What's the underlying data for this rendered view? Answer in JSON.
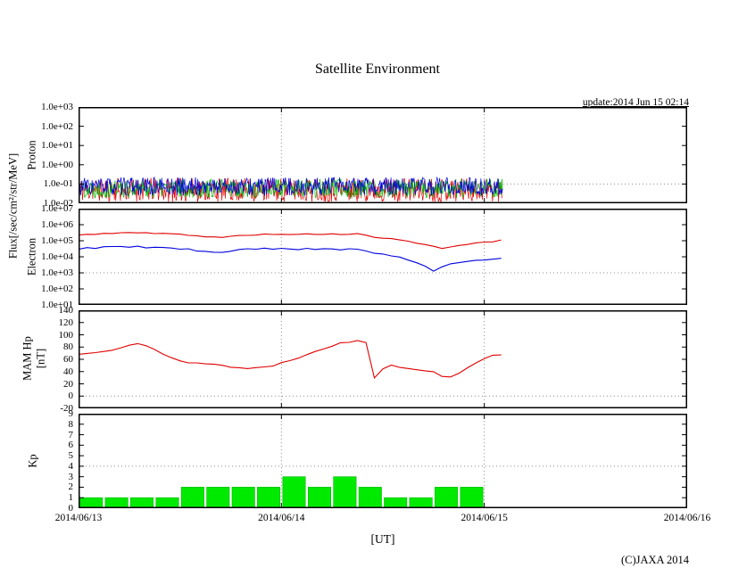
{
  "title": "Satellite Environment",
  "update_text": "update:2014 Jun 15 02:14",
  "xlabel": "[UT]",
  "copyright": "(C)JAXA 2014",
  "axis_labels": {
    "flux": "Flux[/sec/cm²/str/MeV]",
    "proton": "Proton",
    "electron": "Electron",
    "mam_hp": "MAM Hp",
    "nt": "[nT]",
    "kp": "Kp"
  },
  "x_axis": {
    "tick_labels": [
      "2014/06/13",
      "2014/06/14",
      "2014/06/15",
      "2014/06/16"
    ],
    "span_hours": 72,
    "grid_days": [
      1,
      2
    ]
  },
  "chart_data": [
    {
      "id": "proton",
      "name": "Proton flux",
      "type": "line",
      "yscale": "log",
      "ylim": [
        0.01,
        1000
      ],
      "yticks": [
        {
          "v": 1000,
          "label": "1.0e+03"
        },
        {
          "v": 100,
          "label": "1.0e+02"
        },
        {
          "v": 10,
          "label": "1.0e+01"
        },
        {
          "v": 1,
          "label": "1.0e+00"
        },
        {
          "v": 0.1,
          "label": "1.0e-01"
        },
        {
          "v": 0.01,
          "label": "1.0e-02"
        }
      ],
      "grid_y": [
        0.1
      ],
      "series": [
        {
          "name": "proton-ch-red",
          "color": "#e00000",
          "noise": {
            "seed": 11,
            "base": 0.05,
            "logspread": 1.25,
            "t_end": 50.2,
            "dt": 0.08
          }
        },
        {
          "name": "proton-ch-green",
          "color": "#00b400",
          "noise": {
            "seed": 22,
            "base": 0.06,
            "logspread": 1.0,
            "t_end": 50.2,
            "dt": 0.08
          }
        },
        {
          "name": "proton-ch-blue",
          "color": "#0000dd",
          "noise": {
            "seed": 33,
            "base": 0.075,
            "logspread": 0.95,
            "t_end": 50.2,
            "dt": 0.08
          }
        }
      ]
    },
    {
      "id": "electron",
      "name": "Electron flux",
      "type": "line",
      "yscale": "log",
      "ylim": [
        10,
        10000000
      ],
      "yticks": [
        {
          "v": 10000000,
          "label": "1.0e+07"
        },
        {
          "v": 1000000,
          "label": "1.0e+06"
        },
        {
          "v": 100000,
          "label": "1.0e+05"
        },
        {
          "v": 10000,
          "label": "1.0e+04"
        },
        {
          "v": 1000,
          "label": "1.0e+03"
        },
        {
          "v": 100,
          "label": "1.0e+02"
        },
        {
          "v": 10,
          "label": "1.0e+01"
        }
      ],
      "grid_y": [
        1000
      ],
      "x_step_hours": 1,
      "series": [
        {
          "name": "electron-high",
          "color": "#e00000",
          "seed": 5,
          "jitter_log": 0.035,
          "values": [
            220000,
            240000,
            260000,
            285000,
            300000,
            310000,
            315000,
            310000,
            300000,
            290000,
            278000,
            262000,
            250000,
            232000,
            205000,
            178000,
            162000,
            166000,
            182000,
            205000,
            225000,
            242000,
            252000,
            257000,
            260000,
            258000,
            254000,
            250000,
            258000,
            264000,
            258000,
            250000,
            254000,
            260000,
            228000,
            165000,
            150000,
            128000,
            108000,
            88000,
            70000,
            55000,
            44000,
            35000,
            40000,
            50000,
            60000,
            70000,
            81000,
            92000,
            105000
          ]
        },
        {
          "name": "electron-low",
          "color": "#0000dd",
          "seed": 9,
          "jitter_log": 0.06,
          "values": [
            32000,
            34000,
            36500,
            39000,
            41000,
            42000,
            42000,
            41000,
            39500,
            38000,
            36000,
            34000,
            31500,
            28000,
            24000,
            20500,
            18500,
            19500,
            22000,
            25500,
            28500,
            30000,
            31000,
            31800,
            32000,
            31800,
            31000,
            30200,
            31000,
            31800,
            31000,
            30000,
            29000,
            28000,
            25000,
            18500,
            15000,
            12000,
            9200,
            6600,
            4200,
            2300,
            1250,
            2600,
            3600,
            4500,
            5100,
            5600,
            6100,
            6900,
            8000
          ]
        }
      ]
    },
    {
      "id": "hp",
      "name": "MAM Hp",
      "type": "line",
      "yscale": "linear",
      "ylim": [
        -20,
        140
      ],
      "yticks": [
        {
          "v": 140,
          "label": "140"
        },
        {
          "v": 120,
          "label": "120"
        },
        {
          "v": 100,
          "label": "100"
        },
        {
          "v": 80,
          "label": "80"
        },
        {
          "v": 60,
          "label": "60"
        },
        {
          "v": 40,
          "label": "40"
        },
        {
          "v": 20,
          "label": "20"
        },
        {
          "v": 0,
          "label": "0"
        },
        {
          "v": -20,
          "label": "-20"
        }
      ],
      "grid_y": [
        0
      ],
      "x_step_hours": 1,
      "series": [
        {
          "name": "hp-magnetic-field",
          "color": "#e00000",
          "seed": 13,
          "jitter_lin": 1.3,
          "values": [
            68,
            70,
            72,
            74,
            76,
            80,
            84,
            86,
            82,
            75,
            68,
            62,
            58,
            55,
            54,
            53,
            52,
            50,
            48,
            46,
            45,
            46,
            48,
            50,
            54,
            58,
            63,
            68,
            74,
            78,
            82,
            86,
            88,
            90,
            88,
            30,
            45,
            50,
            48,
            45,
            44,
            42,
            40,
            33,
            32,
            38,
            45,
            55,
            62,
            66,
            68
          ]
        }
      ]
    },
    {
      "id": "kp",
      "name": "Kp index",
      "type": "bar",
      "yscale": "linear",
      "ylim": [
        0,
        9
      ],
      "yticks": [
        {
          "v": 9,
          "label": "9"
        },
        {
          "v": 8,
          "label": "8"
        },
        {
          "v": 7,
          "label": "7"
        },
        {
          "v": 6,
          "label": "6"
        },
        {
          "v": 5,
          "label": "5"
        },
        {
          "v": 4,
          "label": "4"
        },
        {
          "v": 3,
          "label": "3"
        },
        {
          "v": 2,
          "label": "2"
        },
        {
          "v": 1,
          "label": "1"
        },
        {
          "v": 0,
          "label": "0"
        }
      ],
      "grid_y": [
        4
      ],
      "bar": {
        "color": "#00ea00",
        "edge": "#00b400",
        "width_hours": 3,
        "start_hour": 0,
        "values": [
          1,
          1,
          1,
          1,
          2,
          2,
          2,
          2,
          3,
          2,
          3,
          2,
          1,
          1,
          2,
          2
        ]
      }
    }
  ]
}
